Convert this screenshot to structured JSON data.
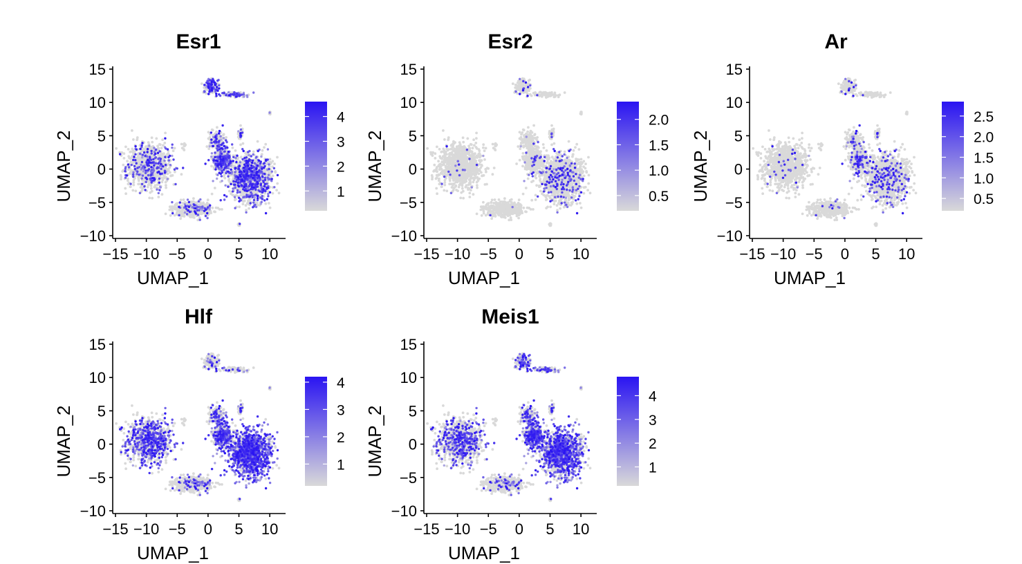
{
  "chart_data": [
    {
      "type": "scatter",
      "title": "Esr1",
      "xlabel": "UMAP_1",
      "ylabel": "UMAP_2",
      "xlim": [
        -15,
        12
      ],
      "ylim": [
        -10,
        15
      ],
      "x_ticks": [
        -15,
        -10,
        -5,
        0,
        5,
        10
      ],
      "x_tick_labels": [
        "−15",
        "−10",
        "−5",
        "0",
        "5",
        "10"
      ],
      "y_ticks": [
        -10,
        -5,
        0,
        5,
        10,
        15
      ],
      "y_tick_labels": [
        "−10",
        "−5",
        "0",
        "5",
        "10",
        "15"
      ],
      "colorbar": {
        "min": 0.2,
        "max": 4.6,
        "ticks": [
          1,
          2,
          3,
          4
        ],
        "tick_labels": [
          "1",
          "2",
          "3",
          "4"
        ],
        "low_color": "#d9d9d9",
        "high_color": "#2a14f2"
      },
      "expression": {
        "left_lobe": 0.18,
        "bottom_tail": 0.15,
        "upper_cluster": 0.6,
        "mid_arm": 0.25,
        "central_knob": 0.55,
        "right_body": 0.35,
        "satellites": 0.05
      }
    },
    {
      "type": "scatter",
      "title": "Esr2",
      "xlabel": "UMAP_1",
      "ylabel": "UMAP_2",
      "xlim": [
        -15,
        12
      ],
      "ylim": [
        -10,
        15
      ],
      "x_ticks": [
        -15,
        -10,
        -5,
        0,
        5,
        10
      ],
      "x_tick_labels": [
        "−15",
        "−10",
        "−5",
        "0",
        "5",
        "10"
      ],
      "y_ticks": [
        -10,
        -5,
        0,
        5,
        10,
        15
      ],
      "y_tick_labels": [
        "−10",
        "−5",
        "0",
        "5",
        "10",
        "15"
      ],
      "colorbar": {
        "min": 0.2,
        "max": 2.35,
        "ticks": [
          0.5,
          1.0,
          1.5,
          2.0
        ],
        "tick_labels": [
          "0.5",
          "1.0",
          "1.5",
          "2.0"
        ],
        "low_color": "#d9d9d9",
        "high_color": "#2a14f2"
      },
      "expression": {
        "left_lobe": 0.02,
        "bottom_tail": 0.01,
        "upper_cluster": 0.05,
        "mid_arm": 0.02,
        "central_knob": 0.06,
        "right_body": 0.12,
        "satellites": 0.0
      }
    },
    {
      "type": "scatter",
      "title": "Ar",
      "xlabel": "UMAP_1",
      "ylabel": "UMAP_2",
      "xlim": [
        -15,
        12
      ],
      "ylim": [
        -10,
        15
      ],
      "x_ticks": [
        -15,
        -10,
        -5,
        0,
        5,
        10
      ],
      "x_tick_labels": [
        "−15",
        "−10",
        "−5",
        "0",
        "5",
        "10"
      ],
      "y_ticks": [
        -10,
        -5,
        0,
        5,
        10,
        15
      ],
      "y_tick_labels": [
        "−10",
        "−5",
        "0",
        "5",
        "10",
        "15"
      ],
      "colorbar": {
        "min": 0.2,
        "max": 2.85,
        "ticks": [
          0.5,
          1.0,
          1.5,
          2.0,
          2.5
        ],
        "tick_labels": [
          "0.5",
          "1.0",
          "1.5",
          "2.0",
          "2.5"
        ],
        "low_color": "#d9d9d9",
        "high_color": "#2a14f2"
      },
      "expression": {
        "left_lobe": 0.03,
        "bottom_tail": 0.02,
        "upper_cluster": 0.05,
        "mid_arm": 0.1,
        "central_knob": 0.22,
        "right_body": 0.12,
        "satellites": 0.0
      }
    },
    {
      "type": "scatter",
      "title": "Hlf",
      "xlabel": "UMAP_1",
      "ylabel": "UMAP_2",
      "xlim": [
        -15,
        12
      ],
      "ylim": [
        -10,
        15
      ],
      "x_ticks": [
        -15,
        -10,
        -5,
        0,
        5,
        10
      ],
      "x_tick_labels": [
        "−15",
        "−10",
        "−5",
        "0",
        "5",
        "10"
      ],
      "y_ticks": [
        -10,
        -5,
        0,
        5,
        10,
        15
      ],
      "y_tick_labels": [
        "−10",
        "−5",
        "0",
        "5",
        "10",
        "15"
      ],
      "colorbar": {
        "min": 0.2,
        "max": 4.2,
        "ticks": [
          1,
          2,
          3,
          4
        ],
        "tick_labels": [
          "1",
          "2",
          "3",
          "4"
        ],
        "low_color": "#d9d9d9",
        "high_color": "#2a14f2"
      },
      "expression": {
        "left_lobe": 0.4,
        "bottom_tail": 0.15,
        "upper_cluster": 0.15,
        "mid_arm": 0.3,
        "central_knob": 0.6,
        "right_body": 0.7,
        "satellites": 0.05
      }
    },
    {
      "type": "scatter",
      "title": "Meis1",
      "xlabel": "UMAP_1",
      "ylabel": "UMAP_2",
      "xlim": [
        -15,
        12
      ],
      "ylim": [
        -10,
        15
      ],
      "x_ticks": [
        -15,
        -10,
        -5,
        0,
        5,
        10
      ],
      "x_tick_labels": [
        "−15",
        "−10",
        "−5",
        "0",
        "5",
        "10"
      ],
      "y_ticks": [
        -10,
        -5,
        0,
        5,
        10,
        15
      ],
      "y_tick_labels": [
        "−10",
        "−5",
        "0",
        "5",
        "10",
        "15"
      ],
      "colorbar": {
        "min": 0.2,
        "max": 4.8,
        "ticks": [
          1,
          2,
          3,
          4
        ],
        "tick_labels": [
          "1",
          "2",
          "3",
          "4"
        ],
        "low_color": "#d9d9d9",
        "high_color": "#2a14f2"
      },
      "expression": {
        "left_lobe": 0.3,
        "bottom_tail": 0.12,
        "upper_cluster": 0.45,
        "mid_arm": 0.3,
        "central_knob": 0.75,
        "right_body": 0.55,
        "satellites": 0.05
      }
    }
  ]
}
